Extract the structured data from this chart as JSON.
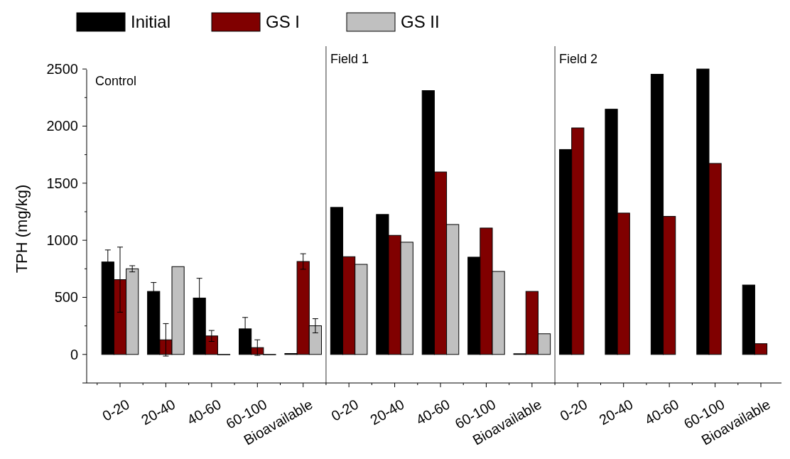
{
  "chart_data": {
    "type": "bar",
    "ylabel": "TPH (mg/kg)",
    "categories": [
      "0-20",
      "20-40",
      "40-60",
      "60-100",
      "Bioavailable",
      "0-20",
      "20-40",
      "40-60",
      "60-100",
      "Bioavailable",
      "0-20",
      "20-40",
      "40-60",
      "60-100",
      "Bioavailable"
    ],
    "series": [
      {
        "name": "Initial",
        "color": "#000000",
        "values": [
          810,
          552,
          494,
          224,
          8,
          1288,
          1226,
          2311,
          852,
          6,
          1795,
          2148,
          2454,
          2500,
          608
        ],
        "errors": [
          105,
          78,
          173,
          100,
          null,
          null,
          null,
          null,
          null,
          null,
          null,
          null,
          null,
          null,
          null
        ]
      },
      {
        "name": "GS I",
        "color": "#800000",
        "values": [
          655,
          128,
          162,
          60,
          814,
          856,
          1043,
          1598,
          1107,
          552,
          1984,
          1238,
          1209,
          1673,
          94
        ],
        "errors": [
          285,
          142,
          48,
          68,
          68,
          null,
          null,
          null,
          null,
          null,
          null,
          null,
          null,
          null,
          null
        ]
      },
      {
        "name": "GS II",
        "color": "#c0c0c0",
        "values": [
          750,
          769,
          0,
          0,
          251,
          789,
          983,
          1138,
          727,
          181,
          null,
          null,
          null,
          null,
          null
        ],
        "errors": [
          27,
          null,
          null,
          null,
          62,
          null,
          null,
          null,
          null,
          null,
          null,
          null,
          null,
          null,
          null
        ]
      }
    ],
    "ylim": [
      -250,
      2700
    ],
    "yticks": [
      0,
      500,
      1000,
      1500,
      2000,
      2500
    ],
    "annotations": [
      "Control",
      "Field 1",
      "Field 2"
    ],
    "legend": "top left",
    "grid": false
  }
}
